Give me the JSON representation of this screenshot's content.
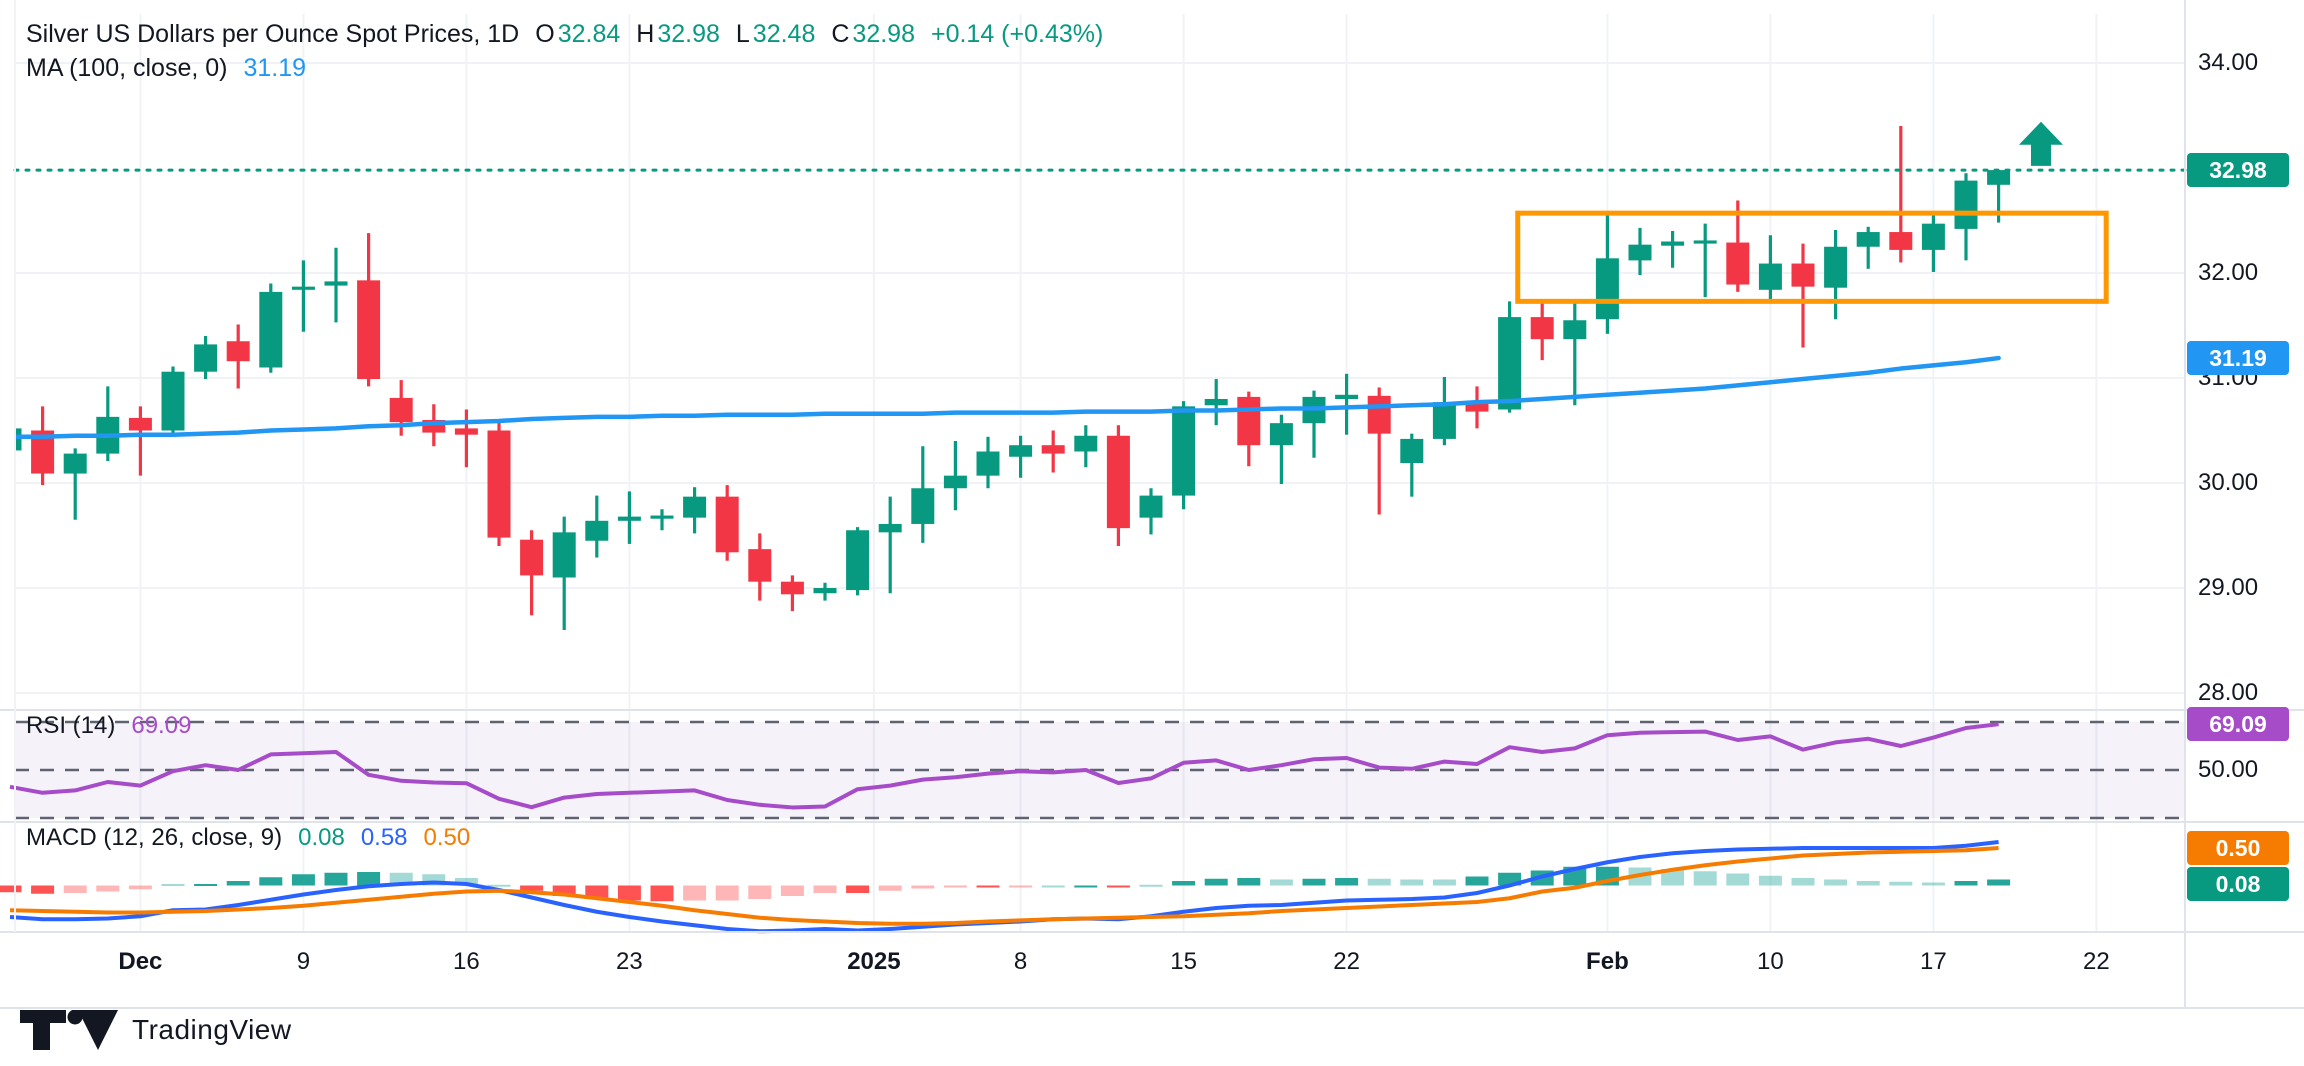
{
  "header": {
    "title": "Silver US Dollars per Ounce Spot Prices, 1D",
    "ohlc": {
      "o_label": "O",
      "o": "32.84",
      "h_label": "H",
      "h": "32.98",
      "l_label": "L",
      "l": "32.48",
      "c_label": "C",
      "c": "32.98",
      "change": "+0.14 (+0.43%)"
    },
    "ma_label": "MA (100, close, 0)",
    "ma_value": "31.19"
  },
  "panes": {
    "rsi": {
      "label": "RSI (14)",
      "value": "69.09",
      "axis_label": "50.00",
      "badge": "69.09"
    },
    "macd": {
      "label": "MACD (12, 26, close, 9)",
      "hist_value": "0.08",
      "macd_value": "0.58",
      "signal_value": "0.50",
      "badge_signal": "0.50",
      "badge_hist": "0.08"
    }
  },
  "y_axis_badges": {
    "price": "32.98",
    "ma": "31.19"
  },
  "footer": {
    "brand": "TradingView"
  },
  "chart_data": {
    "type": "candlestick",
    "title": "Silver US Dollars per Ounce Spot Prices",
    "interval": "1D",
    "last_bar": {
      "open": 32.84,
      "high": 32.98,
      "low": 32.48,
      "close": 32.98,
      "change_abs": 0.14,
      "change_pct": 0.43
    },
    "price_axis_ticks": [
      34.0,
      32.0,
      31.0,
      30.0,
      29.0,
      28.0
    ],
    "price_line": 32.98,
    "x_ticks": [
      {
        "label": "Dec",
        "index": 4,
        "bold": true
      },
      {
        "label": "9",
        "index": 9,
        "bold": false
      },
      {
        "label": "16",
        "index": 14,
        "bold": false
      },
      {
        "label": "23",
        "index": 19,
        "bold": false
      },
      {
        "label": "2025",
        "index": 26.5,
        "bold": true
      },
      {
        "label": "8",
        "index": 31,
        "bold": false
      },
      {
        "label": "15",
        "index": 36,
        "bold": false
      },
      {
        "label": "22",
        "index": 41,
        "bold": false
      },
      {
        "label": "Feb",
        "index": 49,
        "bold": true
      },
      {
        "label": "10",
        "index": 54,
        "bold": false
      },
      {
        "label": "17",
        "index": 59,
        "bold": false
      },
      {
        "label": "22",
        "index": 64,
        "bold": false
      }
    ],
    "candles": [
      [
        30.31,
        30.55,
        30.2,
        30.52
      ],
      [
        30.5,
        30.73,
        29.98,
        30.09
      ],
      [
        30.09,
        30.33,
        29.65,
        30.28
      ],
      [
        30.28,
        30.92,
        30.21,
        30.63
      ],
      [
        30.62,
        30.73,
        30.07,
        30.5
      ],
      [
        30.5,
        31.11,
        30.47,
        31.06
      ],
      [
        31.06,
        31.4,
        30.99,
        31.32
      ],
      [
        31.35,
        31.51,
        30.9,
        31.16
      ],
      [
        31.1,
        31.9,
        31.05,
        31.82
      ],
      [
        31.84,
        32.12,
        31.44,
        31.87
      ],
      [
        31.88,
        32.24,
        31.53,
        31.92
      ],
      [
        31.93,
        32.38,
        30.92,
        30.99
      ],
      [
        30.81,
        30.98,
        30.45,
        30.58
      ],
      [
        30.6,
        30.75,
        30.35,
        30.48
      ],
      [
        30.52,
        30.7,
        30.15,
        30.46
      ],
      [
        30.5,
        30.58,
        29.4,
        29.48
      ],
      [
        29.46,
        29.55,
        28.74,
        29.12
      ],
      [
        29.1,
        29.68,
        28.6,
        29.53
      ],
      [
        29.45,
        29.88,
        29.29,
        29.64
      ],
      [
        29.64,
        29.92,
        29.42,
        29.68
      ],
      [
        29.66,
        29.75,
        29.55,
        29.69
      ],
      [
        29.67,
        29.96,
        29.52,
        29.87
      ],
      [
        29.87,
        29.98,
        29.26,
        29.34
      ],
      [
        29.37,
        29.52,
        28.88,
        29.06
      ],
      [
        29.06,
        29.12,
        28.78,
        28.94
      ],
      [
        28.95,
        29.05,
        28.88,
        29.0
      ],
      [
        28.98,
        29.58,
        28.93,
        29.55
      ],
      [
        29.53,
        29.87,
        28.95,
        29.61
      ],
      [
        29.61,
        30.35,
        29.43,
        29.95
      ],
      [
        29.95,
        30.4,
        29.74,
        30.07
      ],
      [
        30.07,
        30.44,
        29.95,
        30.3
      ],
      [
        30.25,
        30.45,
        30.05,
        30.36
      ],
      [
        30.36,
        30.5,
        30.1,
        30.28
      ],
      [
        30.3,
        30.55,
        30.15,
        30.45
      ],
      [
        30.45,
        30.55,
        29.4,
        29.57
      ],
      [
        29.67,
        29.95,
        29.51,
        29.88
      ],
      [
        29.88,
        30.78,
        29.75,
        30.73
      ],
      [
        30.74,
        30.99,
        30.55,
        30.8
      ],
      [
        30.82,
        30.87,
        30.16,
        30.36
      ],
      [
        30.36,
        30.65,
        29.99,
        30.57
      ],
      [
        30.57,
        30.88,
        30.24,
        30.82
      ],
      [
        30.8,
        31.04,
        30.46,
        30.84
      ],
      [
        30.83,
        30.91,
        29.7,
        30.47
      ],
      [
        30.19,
        30.47,
        29.87,
        30.42
      ],
      [
        30.42,
        31.01,
        30.36,
        30.77
      ],
      [
        30.77,
        30.92,
        30.52,
        30.68
      ],
      [
        30.7,
        31.73,
        30.67,
        31.58
      ],
      [
        31.58,
        31.73,
        31.17,
        31.37
      ],
      [
        31.37,
        31.71,
        30.74,
        31.55
      ],
      [
        31.56,
        32.58,
        31.42,
        32.14
      ],
      [
        32.12,
        32.43,
        31.98,
        32.27
      ],
      [
        32.26,
        32.4,
        32.05,
        32.3
      ],
      [
        32.28,
        32.47,
        31.77,
        32.31
      ],
      [
        32.29,
        32.69,
        31.82,
        31.89
      ],
      [
        31.84,
        32.36,
        31.72,
        32.09
      ],
      [
        32.09,
        32.28,
        31.29,
        31.87
      ],
      [
        31.86,
        32.41,
        31.56,
        32.25
      ],
      [
        32.25,
        32.44,
        32.04,
        32.39
      ],
      [
        32.39,
        33.4,
        32.1,
        32.22
      ],
      [
        32.22,
        32.55,
        32.01,
        32.47
      ],
      [
        32.42,
        32.95,
        32.12,
        32.88
      ],
      [
        32.84,
        32.98,
        32.48,
        32.98
      ]
    ],
    "ma100": [
      30.44,
      30.44,
      30.45,
      30.45,
      30.46,
      30.46,
      30.47,
      30.48,
      30.5,
      30.51,
      30.52,
      30.54,
      30.55,
      30.57,
      30.58,
      30.59,
      30.61,
      30.62,
      30.63,
      30.63,
      30.64,
      30.64,
      30.65,
      30.65,
      30.65,
      30.66,
      30.66,
      30.66,
      30.66,
      30.67,
      30.67,
      30.67,
      30.67,
      30.68,
      30.68,
      30.68,
      30.69,
      30.69,
      30.7,
      30.71,
      30.71,
      30.72,
      30.73,
      30.74,
      30.75,
      30.77,
      30.78,
      30.8,
      30.82,
      30.84,
      30.86,
      30.88,
      30.9,
      30.93,
      30.96,
      30.99,
      31.02,
      31.05,
      31.09,
      31.12,
      31.15,
      31.19
    ],
    "rsi": {
      "period": 14,
      "last": 69.09,
      "overbought": 70,
      "middle": 50,
      "oversold": 30,
      "values": [
        43,
        40.5,
        41.5,
        45,
        43.5,
        49.5,
        52,
        50,
        56.5,
        57,
        57.5,
        48,
        45.5,
        44.8,
        44.5,
        38,
        34.5,
        38.5,
        40,
        40.5,
        41,
        41.5,
        37.5,
        35.5,
        34.4,
        34.8,
        42,
        43.5,
        46,
        47,
        48.5,
        49.5,
        49,
        50,
        44.6,
        46.5,
        53,
        54,
        50,
        52,
        54.5,
        55,
        51,
        50.5,
        53.5,
        52.5,
        59.5,
        57.5,
        59,
        64.5,
        65.5,
        65.8,
        66,
        62.5,
        64,
        58.5,
        61.5,
        63,
        60,
        63.5,
        67.5,
        69.09
      ]
    },
    "macd": {
      "params": "12, 26, close, 9",
      "last_hist": 0.08,
      "last_macd": 0.58,
      "last_signal": 0.5,
      "macd_line": [
        -0.42,
        -0.45,
        -0.45,
        -0.44,
        -0.41,
        -0.33,
        -0.32,
        -0.26,
        -0.19,
        -0.12,
        -0.06,
        -0.01,
        0.02,
        0.04,
        0.02,
        -0.06,
        -0.16,
        -0.26,
        -0.35,
        -0.42,
        -0.48,
        -0.53,
        -0.58,
        -0.61,
        -0.6,
        -0.58,
        -0.6,
        -0.58,
        -0.55,
        -0.52,
        -0.5,
        -0.48,
        -0.45,
        -0.44,
        -0.45,
        -0.41,
        -0.35,
        -0.3,
        -0.27,
        -0.26,
        -0.23,
        -0.2,
        -0.19,
        -0.18,
        -0.16,
        -0.1,
        0.0,
        0.12,
        0.22,
        0.31,
        0.38,
        0.43,
        0.46,
        0.48,
        0.49,
        0.5,
        0.5,
        0.5,
        0.5,
        0.5,
        0.53,
        0.58
      ],
      "signal_line": [
        -0.33,
        -0.34,
        -0.35,
        -0.36,
        -0.36,
        -0.35,
        -0.34,
        -0.32,
        -0.3,
        -0.27,
        -0.23,
        -0.19,
        -0.15,
        -0.11,
        -0.08,
        -0.07,
        -0.09,
        -0.12,
        -0.17,
        -0.22,
        -0.27,
        -0.33,
        -0.38,
        -0.43,
        -0.46,
        -0.48,
        -0.5,
        -0.51,
        -0.51,
        -0.5,
        -0.48,
        -0.465,
        -0.45,
        -0.44,
        -0.43,
        -0.42,
        -0.41,
        -0.39,
        -0.37,
        -0.34,
        -0.32,
        -0.3,
        -0.28,
        -0.26,
        -0.24,
        -0.22,
        -0.17,
        -0.08,
        -0.03,
        0.06,
        0.14,
        0.21,
        0.27,
        0.32,
        0.36,
        0.4,
        0.42,
        0.44,
        0.45,
        0.46,
        0.47,
        0.5
      ]
    },
    "annotations": {
      "rectangle": {
        "from_index": 46.25,
        "to_index": 64.3,
        "price_top": 32.57,
        "price_bottom": 31.73,
        "color": "#FF9800"
      },
      "arrow_up": {
        "index": 62.3,
        "price_top": 33.44,
        "price_bottom": 33.02,
        "color": "#089981"
      },
      "price_dotted_line": {
        "price": 32.98,
        "color": "#089981"
      }
    },
    "colors": {
      "up": "#089981",
      "down": "#F23645",
      "ma": "#2196F3",
      "macd_line": "#2962FF",
      "signal_line": "#F57C00",
      "hist_pos": "#26A69A",
      "hist_neg": "#FF5252",
      "rsi_line": "#A64CC9",
      "rsi_band": "#7E57C2",
      "badge_price": "#089981",
      "badge_ma": "#2196F3",
      "badge_rsi": "#A64CC9",
      "badge_signal": "#F57C00",
      "badge_hist": "#089981",
      "grid": "#F0F2F6",
      "separator": "#E0E3EB",
      "dashed_level": "#5F6270"
    },
    "legend": "Silver US Dollars per Ounce Spot Prices, 1D  O32.84 H32.98 L32.48 C32.98 +0.14 (+0.43%)"
  }
}
